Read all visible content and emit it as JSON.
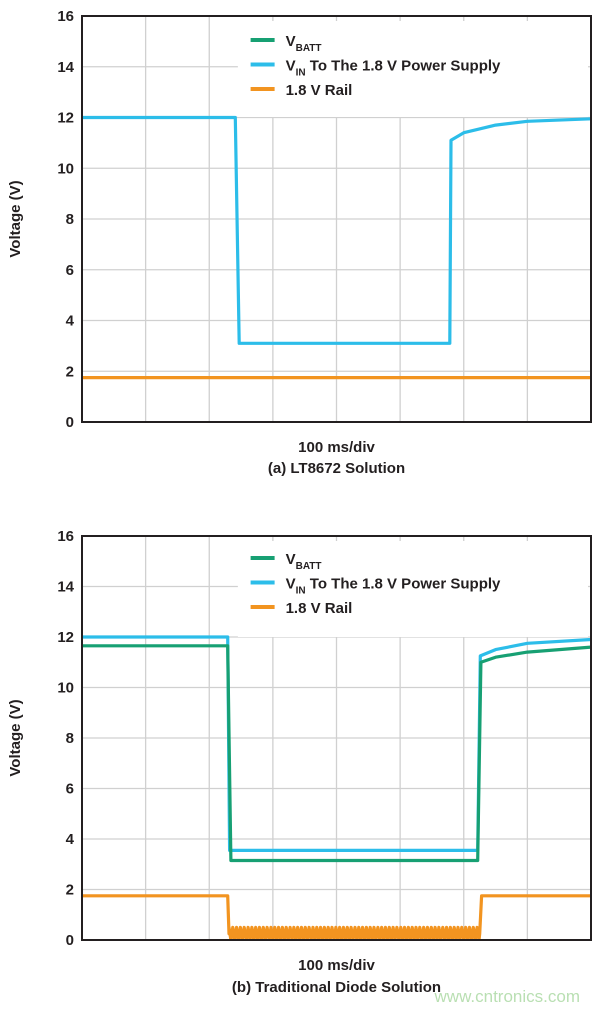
{
  "colors": {
    "vbatt": "#17a073",
    "vin": "#2cbde9",
    "rail": "#f29420",
    "grid": "#d0d0d0",
    "axis": "#231f20"
  },
  "chart_data": [
    {
      "type": "line",
      "xlabel": "100 ms/div",
      "caption": "(a) LT8672 Solution",
      "ylabel": "Voltage (V)",
      "x_unit": "ms",
      "xlim": [
        0,
        800
      ],
      "x_div": 100,
      "ylim": [
        0,
        16
      ],
      "yticks": [
        "0",
        "2",
        "4",
        "6",
        "8",
        "10",
        "12",
        "14",
        "16"
      ],
      "grid": true,
      "legend_position": "top-right",
      "legend": [
        {
          "key": "vbatt",
          "main": "V",
          "sub": "BATT",
          "rest": ""
        },
        {
          "key": "vin",
          "main": "V",
          "sub": "IN",
          "rest": " To The 1.8 V Power Supply"
        },
        {
          "key": "rail",
          "main": "1.8 V Rail",
          "sub": "",
          "rest": ""
        }
      ],
      "series": [
        {
          "key": "vin",
          "x": [
            0,
            241,
            247,
            578,
            580,
            600,
            650,
            700,
            800
          ],
          "y": [
            12,
            12,
            3.1,
            3.1,
            11.1,
            11.4,
            11.7,
            11.85,
            11.95
          ]
        },
        {
          "key": "rail",
          "x": [
            0,
            800
          ],
          "y": [
            1.75,
            1.75
          ]
        }
      ]
    },
    {
      "type": "line",
      "xlabel": "100 ms/div",
      "caption": "(b) Traditional Diode Solution",
      "ylabel": "Voltage (V)",
      "x_unit": "ms",
      "xlim": [
        0,
        800
      ],
      "x_div": 100,
      "ylim": [
        0,
        16
      ],
      "yticks": [
        "0",
        "2",
        "4",
        "6",
        "8",
        "10",
        "12",
        "14",
        "16"
      ],
      "grid": true,
      "legend_position": "top-right",
      "legend": [
        {
          "key": "vbatt",
          "main": "V",
          "sub": "BATT",
          "rest": ""
        },
        {
          "key": "vin",
          "main": "V",
          "sub": "IN",
          "rest": " To The 1.8 V Power Supply"
        },
        {
          "key": "rail",
          "main": "1.8 V Rail",
          "sub": "",
          "rest": ""
        }
      ],
      "series": [
        {
          "key": "vin",
          "x": [
            0,
            229,
            232,
            622,
            626,
            650,
            700,
            800
          ],
          "y": [
            12,
            12,
            3.55,
            3.55,
            11.25,
            11.5,
            11.75,
            11.9
          ]
        },
        {
          "key": "vbatt",
          "x": [
            0,
            229,
            234,
            622,
            627,
            650,
            700,
            800
          ],
          "y": [
            11.65,
            11.65,
            3.15,
            3.15,
            11.0,
            11.2,
            11.4,
            11.6
          ]
        },
        {
          "key": "rail",
          "x": [
            0,
            229,
            231,
            625,
            628,
            800
          ],
          "y": [
            1.75,
            1.75,
            0.25,
            0.25,
            1.75,
            1.75
          ],
          "ripple_range": [
            0,
            0.5
          ]
        }
      ]
    }
  ],
  "watermark": "www.cntronics.com"
}
